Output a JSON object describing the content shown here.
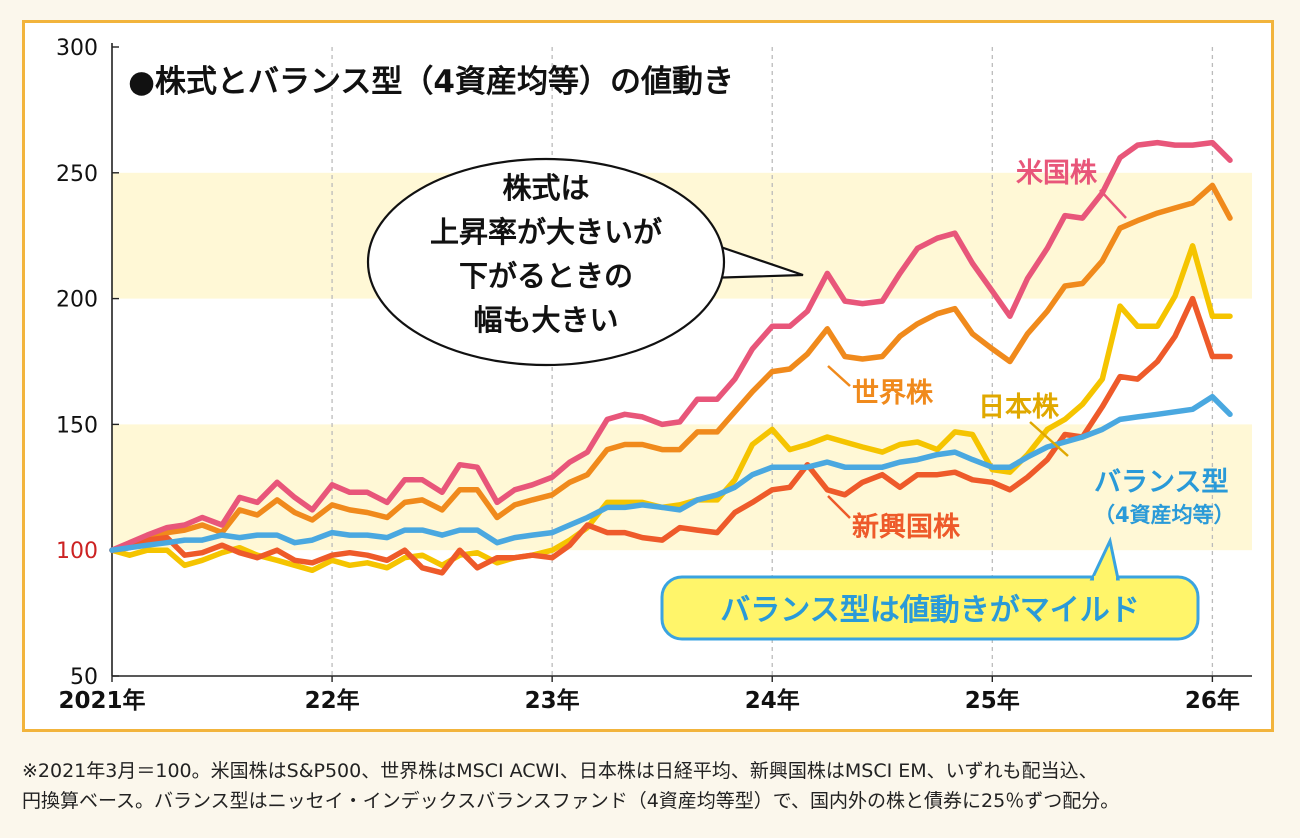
{
  "chart_data": {
    "type": "line",
    "title": "●株式とバランス型（4資産均等）の値動き",
    "ylim": [
      50,
      300
    ],
    "yticks": [
      300,
      250,
      200,
      150,
      100,
      50
    ],
    "xticks": [
      "2021年",
      "22年",
      "23年",
      "24年",
      "25年",
      "26年"
    ],
    "xtick_positions": [
      2021.17,
      2022.17,
      2023.17,
      2024.17,
      2025.17,
      2026.17
    ],
    "xlim": [
      2021.17,
      2026.35
    ],
    "bands": [
      [
        150,
        100
      ],
      [
        250,
        200
      ]
    ],
    "series": [
      {
        "name": "米国株",
        "color": "#e8567a",
        "x": [
          2021.17,
          2021.25,
          2021.33,
          2021.42,
          2021.5,
          2021.58,
          2021.67,
          2021.75,
          2021.83,
          2021.92,
          2022.0,
          2022.08,
          2022.17,
          2022.25,
          2022.33,
          2022.42,
          2022.5,
          2022.58,
          2022.67,
          2022.75,
          2022.83,
          2022.92,
          2023.0,
          2023.08,
          2023.17,
          2023.25,
          2023.33,
          2023.42,
          2023.5,
          2023.58,
          2023.67,
          2023.75,
          2023.83,
          2023.92,
          2024.0,
          2024.08,
          2024.17,
          2024.25,
          2024.33,
          2024.42,
          2024.5,
          2024.58,
          2024.67,
          2024.75,
          2024.83,
          2024.92,
          2025.0,
          2025.08,
          2025.17,
          2025.25,
          2025.33,
          2025.42,
          2025.5,
          2025.58,
          2025.67,
          2025.75,
          2025.83,
          2025.92,
          2026.0,
          2026.08,
          2026.17,
          2026.25
        ],
        "y": [
          100,
          103,
          106,
          109,
          110,
          113,
          110,
          121,
          119,
          127,
          121,
          116,
          126,
          123,
          123,
          119,
          128,
          128,
          123,
          134,
          133,
          119,
          124,
          126,
          129,
          135,
          139,
          152,
          154,
          153,
          150,
          151,
          160,
          160,
          168,
          180,
          189,
          189,
          195,
          210,
          199,
          198,
          199,
          210,
          220,
          224,
          226,
          214,
          203,
          193,
          208,
          220,
          233,
          232,
          242,
          256,
          261,
          262,
          261,
          261,
          262,
          255
        ]
      },
      {
        "name": "世界株",
        "color": "#f08a1c",
        "x": [
          2021.17,
          2021.25,
          2021.33,
          2021.42,
          2021.5,
          2021.58,
          2021.67,
          2021.75,
          2021.83,
          2021.92,
          2022.0,
          2022.08,
          2022.17,
          2022.25,
          2022.33,
          2022.42,
          2022.5,
          2022.58,
          2022.67,
          2022.75,
          2022.83,
          2022.92,
          2023.0,
          2023.08,
          2023.17,
          2023.25,
          2023.33,
          2023.42,
          2023.5,
          2023.58,
          2023.67,
          2023.75,
          2023.83,
          2023.92,
          2024.0,
          2024.08,
          2024.17,
          2024.25,
          2024.33,
          2024.42,
          2024.5,
          2024.58,
          2024.67,
          2024.75,
          2024.83,
          2024.92,
          2025.0,
          2025.08,
          2025.17,
          2025.25,
          2025.33,
          2025.42,
          2025.5,
          2025.58,
          2025.67,
          2025.75,
          2025.83,
          2025.92,
          2026.0,
          2026.08,
          2026.17,
          2026.25
        ],
        "y": [
          100,
          102,
          104,
          107,
          108,
          110,
          107,
          116,
          114,
          120,
          115,
          112,
          118,
          116,
          115,
          113,
          119,
          120,
          116,
          124,
          124,
          113,
          118,
          120,
          122,
          127,
          130,
          140,
          142,
          142,
          140,
          140,
          147,
          147,
          155,
          163,
          171,
          172,
          178,
          188,
          177,
          176,
          177,
          185,
          190,
          194,
          196,
          186,
          180,
          175,
          186,
          195,
          205,
          206,
          215,
          228,
          231,
          234,
          236,
          238,
          245,
          232
        ]
      },
      {
        "name": "日本株",
        "color": "#f5c400",
        "x": [
          2021.17,
          2021.25,
          2021.33,
          2021.42,
          2021.5,
          2021.58,
          2021.67,
          2021.75,
          2021.83,
          2021.92,
          2022.0,
          2022.08,
          2022.17,
          2022.25,
          2022.33,
          2022.42,
          2022.5,
          2022.58,
          2022.67,
          2022.75,
          2022.83,
          2022.92,
          2023.0,
          2023.08,
          2023.17,
          2023.25,
          2023.33,
          2023.42,
          2023.5,
          2023.58,
          2023.67,
          2023.75,
          2023.83,
          2023.92,
          2024.0,
          2024.08,
          2024.17,
          2024.25,
          2024.33,
          2024.42,
          2024.5,
          2024.58,
          2024.67,
          2024.75,
          2024.83,
          2024.92,
          2025.0,
          2025.08,
          2025.17,
          2025.25,
          2025.33,
          2025.42,
          2025.5,
          2025.58,
          2025.67,
          2025.75,
          2025.83,
          2025.92,
          2026.0,
          2026.08,
          2026.17,
          2026.25
        ],
        "y": [
          100,
          98,
          100,
          100,
          94,
          96,
          99,
          101,
          98,
          96,
          94,
          92,
          96,
          94,
          95,
          93,
          97,
          98,
          94,
          98,
          99,
          95,
          97,
          98,
          100,
          104,
          109,
          119,
          119,
          119,
          117,
          118,
          120,
          120,
          128,
          142,
          148,
          140,
          142,
          145,
          143,
          141,
          139,
          142,
          143,
          140,
          147,
          146,
          132,
          131,
          138,
          148,
          152,
          158,
          168,
          197,
          189,
          189,
          201,
          221,
          193,
          193
        ]
      },
      {
        "name": "新興国株",
        "color": "#ee5a2a",
        "x": [
          2021.17,
          2021.25,
          2021.33,
          2021.42,
          2021.5,
          2021.58,
          2021.67,
          2021.75,
          2021.83,
          2021.92,
          2022.0,
          2022.08,
          2022.17,
          2022.25,
          2022.33,
          2022.42,
          2022.5,
          2022.58,
          2022.67,
          2022.75,
          2022.83,
          2022.92,
          2023.0,
          2023.08,
          2023.17,
          2023.25,
          2023.33,
          2023.42,
          2023.5,
          2023.58,
          2023.67,
          2023.75,
          2023.83,
          2023.92,
          2024.0,
          2024.08,
          2024.17,
          2024.25,
          2024.33,
          2024.42,
          2024.5,
          2024.58,
          2024.67,
          2024.75,
          2024.83,
          2024.92,
          2025.0,
          2025.08,
          2025.17,
          2025.25,
          2025.33,
          2025.42,
          2025.5,
          2025.58,
          2025.67,
          2025.75,
          2025.83,
          2025.92,
          2026.0,
          2026.08,
          2026.17,
          2026.25
        ],
        "y": [
          100,
          101,
          104,
          105,
          98,
          99,
          102,
          99,
          97,
          100,
          96,
          95,
          98,
          99,
          98,
          96,
          100,
          93,
          91,
          100,
          93,
          97,
          97,
          98,
          97,
          102,
          110,
          107,
          107,
          105,
          104,
          109,
          108,
          107,
          115,
          119,
          124,
          125,
          134,
          124,
          122,
          127,
          130,
          125,
          130,
          130,
          131,
          128,
          127,
          124,
          129,
          136,
          146,
          145,
          157,
          169,
          168,
          175,
          185,
          200,
          177,
          177
        ]
      },
      {
        "name": "バランス型",
        "color": "#4aa8e0",
        "x": [
          2021.17,
          2021.25,
          2021.33,
          2021.42,
          2021.5,
          2021.58,
          2021.67,
          2021.75,
          2021.83,
          2021.92,
          2022.0,
          2022.08,
          2022.17,
          2022.25,
          2022.33,
          2022.42,
          2022.5,
          2022.58,
          2022.67,
          2022.75,
          2022.83,
          2022.92,
          2023.0,
          2023.08,
          2023.17,
          2023.25,
          2023.33,
          2023.42,
          2023.5,
          2023.58,
          2023.67,
          2023.75,
          2023.83,
          2023.92,
          2024.0,
          2024.08,
          2024.17,
          2024.25,
          2024.33,
          2024.42,
          2024.5,
          2024.58,
          2024.67,
          2024.75,
          2024.83,
          2024.92,
          2025.0,
          2025.08,
          2025.17,
          2025.25,
          2025.33,
          2025.42,
          2025.5,
          2025.58,
          2025.67,
          2025.75,
          2025.83,
          2025.92,
          2026.0,
          2026.08,
          2026.17,
          2026.25
        ],
        "y": [
          100,
          101,
          102,
          103,
          104,
          104,
          106,
          105,
          106,
          106,
          103,
          104,
          107,
          106,
          106,
          105,
          108,
          108,
          106,
          108,
          108,
          103,
          105,
          106,
          107,
          110,
          113,
          117,
          117,
          118,
          117,
          116,
          120,
          122,
          125,
          130,
          133,
          133,
          133,
          135,
          133,
          133,
          133,
          135,
          136,
          138,
          139,
          136,
          133,
          133,
          137,
          141,
          143,
          145,
          148,
          152,
          153,
          154,
          155,
          156,
          161,
          154
        ]
      }
    ],
    "series_labels": {
      "us": "米国株",
      "world": "世界株",
      "japan": "日本株",
      "emerging": "新興国株",
      "balance_line1": "バランス型",
      "balance_line2": "（4資産均等）"
    },
    "callout_stock": [
      "株式は",
      "上昇率が大きいが",
      "下がるときの",
      "幅も大きい"
    ],
    "callout_balance": "バランス型は値動きがマイルド"
  },
  "footnote": {
    "line1": "※2021年3月＝100。米国株はS&P500、世界株はMSCI ACWI、日本株は日経平均、新興国株はMSCI EM、いずれも配当込、",
    "line2": "円換算ベース。バランス型はニッセイ・インデックスバランスファンド（4資産均等型）で、国内外の株と債券に25％ずつ配分。"
  },
  "colors": {
    "frame": "#f2b43c",
    "band": "#fff8d6",
    "callout_balance_bg": "#fff56a",
    "callout_balance_border": "#3aa3e0"
  }
}
